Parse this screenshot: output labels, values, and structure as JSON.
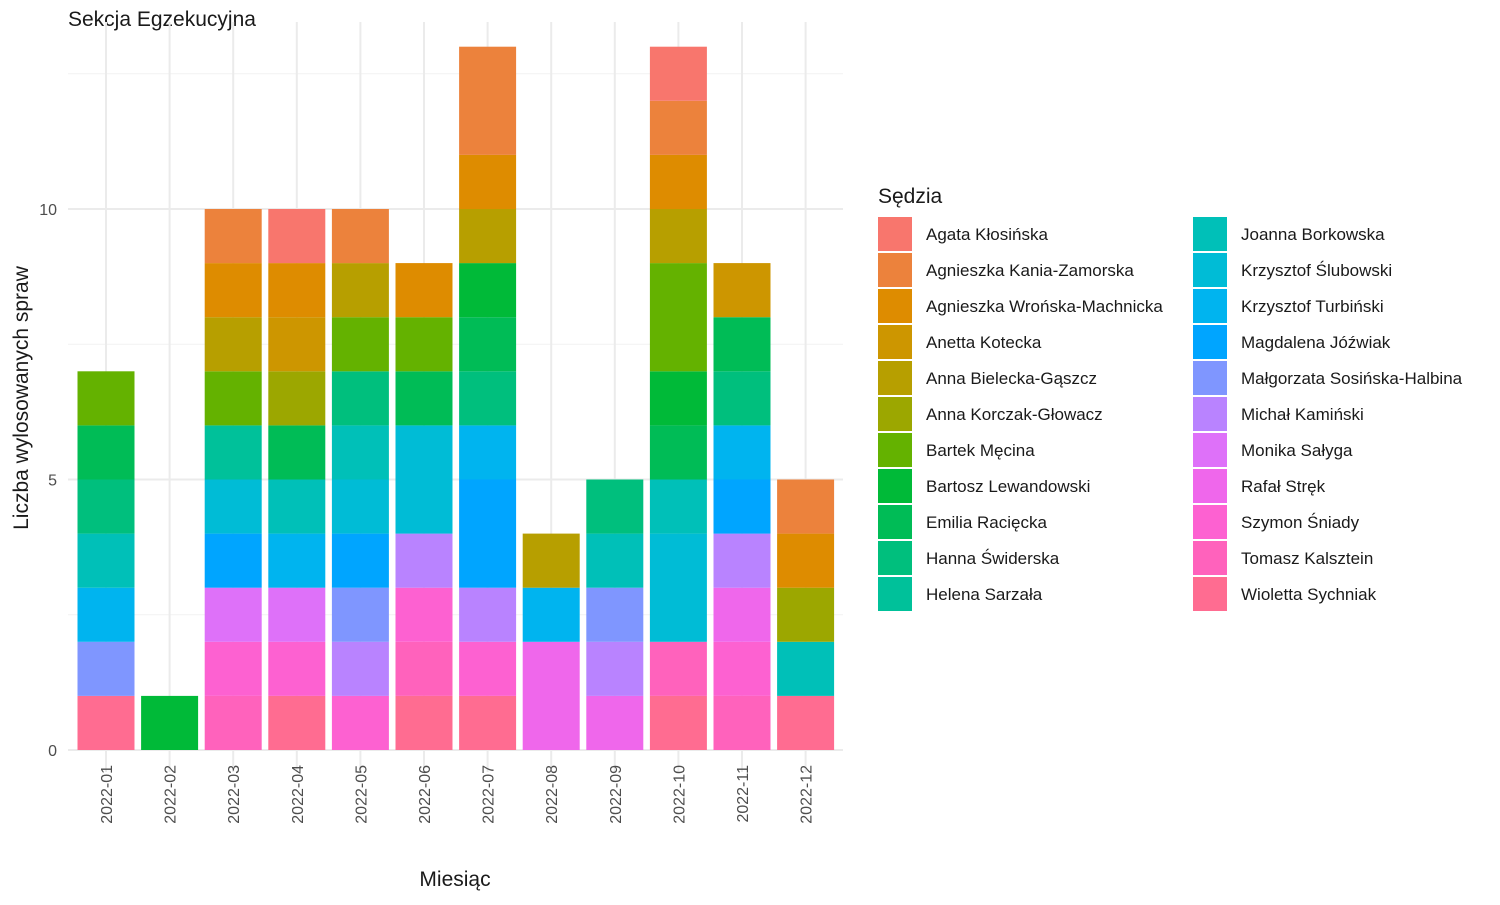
{
  "chart_data": {
    "type": "bar",
    "stacked": true,
    "title": "Sekcja Egzekucyjna",
    "xlabel": "Miesiąc",
    "ylabel": "Liczba wylosowanych spraw",
    "ylim": [
      0,
      13
    ],
    "yticks": [
      0,
      5,
      10
    ],
    "grid": true,
    "legend_title": "Sędzia",
    "legend_position": "right",
    "categories": [
      "2022-01",
      "2022-02",
      "2022-03",
      "2022-04",
      "2022-05",
      "2022-06",
      "2022-07",
      "2022-08",
      "2022-09",
      "2022-10",
      "2022-11",
      "2022-12"
    ],
    "series": [
      {
        "name": "Agata Kłosińska",
        "color": "#F8766D",
        "values": [
          0,
          0,
          0,
          1,
          0,
          0,
          0,
          0,
          0,
          1,
          0,
          0
        ]
      },
      {
        "name": "Agnieszka Kania-Zamorska",
        "color": "#EC823C",
        "values": [
          0,
          0,
          1,
          0,
          1,
          0,
          2,
          0,
          0,
          1,
          0,
          1
        ]
      },
      {
        "name": "Agnieszka Wrońska-Machnicka",
        "color": "#DE8C00",
        "values": [
          0,
          0,
          1,
          1,
          0,
          1,
          1,
          0,
          0,
          1,
          0,
          1
        ]
      },
      {
        "name": "Anetta Kotecka",
        "color": "#CD9600",
        "values": [
          0,
          0,
          0,
          1,
          0,
          0,
          0,
          0,
          0,
          0,
          1,
          0
        ]
      },
      {
        "name": "Anna Bielecka-Gąszcz",
        "color": "#B79F00",
        "values": [
          0,
          0,
          1,
          0,
          1,
          0,
          1,
          1,
          0,
          1,
          0,
          0
        ]
      },
      {
        "name": "Anna Korczak-Głowacz",
        "color": "#9CA700",
        "values": [
          0,
          0,
          0,
          1,
          0,
          0,
          0,
          0,
          0,
          0,
          0,
          1
        ]
      },
      {
        "name": "Bartek Męcina",
        "color": "#64B200",
        "values": [
          1,
          0,
          1,
          0,
          1,
          1,
          0,
          0,
          0,
          2,
          0,
          0
        ]
      },
      {
        "name": "Bartosz Lewandowski",
        "color": "#00BA38",
        "values": [
          0,
          1,
          0,
          0,
          0,
          0,
          1,
          0,
          0,
          1,
          0,
          0
        ]
      },
      {
        "name": "Emilia Racięcka",
        "color": "#00BC56",
        "values": [
          1,
          0,
          0,
          1,
          0,
          1,
          1,
          0,
          0,
          1,
          1,
          0
        ]
      },
      {
        "name": "Hanna Świderska",
        "color": "#00BF7D",
        "values": [
          1,
          0,
          0,
          0,
          1,
          0,
          1,
          0,
          1,
          0,
          1,
          0
        ]
      },
      {
        "name": "Helena Sarzała",
        "color": "#00C19A",
        "values": [
          0,
          0,
          1,
          0,
          0,
          0,
          0,
          0,
          0,
          0,
          0,
          0
        ]
      },
      {
        "name": "Joanna Borkowska",
        "color": "#00C0B8",
        "values": [
          1,
          0,
          0,
          1,
          1,
          0,
          0,
          0,
          1,
          1,
          0,
          1
        ]
      },
      {
        "name": "Krzysztof Ślubowski",
        "color": "#00BCD6",
        "values": [
          0,
          0,
          1,
          0,
          1,
          2,
          0,
          0,
          0,
          2,
          0,
          0
        ]
      },
      {
        "name": "Krzysztof Turbiński",
        "color": "#00B4EF",
        "values": [
          1,
          0,
          0,
          1,
          0,
          0,
          1,
          1,
          0,
          0,
          1,
          0
        ]
      },
      {
        "name": "Magdalena Jóźwiak",
        "color": "#00A5FF",
        "values": [
          0,
          0,
          1,
          0,
          1,
          0,
          2,
          0,
          0,
          0,
          1,
          0
        ]
      },
      {
        "name": "Małgorzata Sosińska-Halbina",
        "color": "#7F96FF",
        "values": [
          1,
          0,
          0,
          0,
          1,
          0,
          0,
          0,
          1,
          0,
          0,
          0
        ]
      },
      {
        "name": "Michał Kamiński",
        "color": "#B983FF",
        "values": [
          0,
          0,
          0,
          0,
          1,
          1,
          1,
          0,
          1,
          0,
          1,
          0
        ]
      },
      {
        "name": "Monika Sałyga",
        "color": "#DE71F9",
        "values": [
          0,
          0,
          1,
          1,
          0,
          0,
          0,
          0,
          0,
          0,
          0,
          0
        ]
      },
      {
        "name": "Rafał Stręk",
        "color": "#EF67EB",
        "values": [
          0,
          0,
          0,
          0,
          0,
          0,
          0,
          2,
          1,
          0,
          1,
          0
        ]
      },
      {
        "name": "Szymon Śniady",
        "color": "#FD61D1",
        "values": [
          0,
          0,
          1,
          1,
          1,
          1,
          1,
          0,
          0,
          0,
          1,
          0
        ]
      },
      {
        "name": "Tomasz Kalsztein",
        "color": "#FF62BC",
        "values": [
          0,
          0,
          1,
          0,
          0,
          1,
          0,
          0,
          0,
          1,
          1,
          0
        ]
      },
      {
        "name": "Wioletta Sychniak",
        "color": "#FF6C91",
        "values": [
          1,
          0,
          0,
          1,
          0,
          1,
          1,
          0,
          0,
          1,
          0,
          1
        ]
      }
    ]
  }
}
